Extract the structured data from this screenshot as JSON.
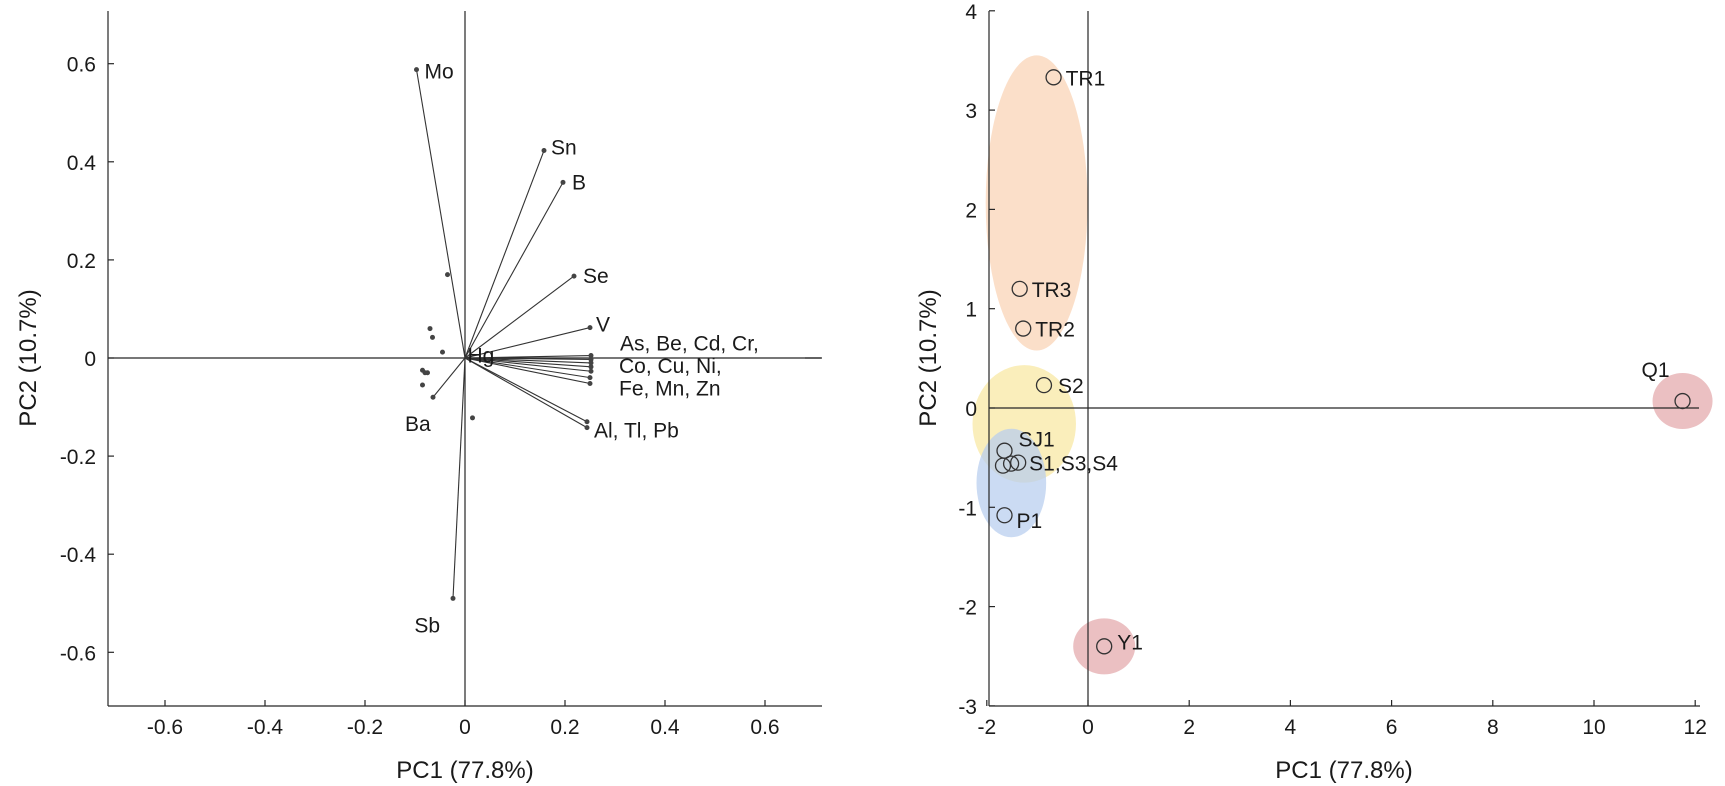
{
  "chart_data": [
    {
      "type": "scatter",
      "subtype": "loading-biplot",
      "title": "",
      "xlabel": "PC1 (77.8%)",
      "ylabel": "PC2 (10.7%)",
      "xlim": [
        -0.65,
        0.65
      ],
      "ylim": [
        -0.64,
        0.64
      ],
      "xticks": [
        -0.6,
        -0.4,
        -0.2,
        0,
        0.2,
        0.4,
        0.6
      ],
      "xtick_labels": [
        "-0.6",
        "-0.4",
        "-0.2",
        "0",
        "0.2",
        "0.4",
        "0.6"
      ],
      "yticks": [
        -0.6,
        -0.4,
        -0.2,
        0,
        0.2,
        0.4,
        0.6
      ],
      "ytick_labels": [
        "-0.6",
        "-0.4",
        "-0.2",
        "0",
        "0.2",
        "0.4",
        "0.6"
      ],
      "grid": false,
      "vectors": [
        {
          "label": "Mo",
          "x": -0.097,
          "y": 0.588
        },
        {
          "label": "Sn",
          "x": 0.158,
          "y": 0.423
        },
        {
          "label": "B",
          "x": 0.196,
          "y": 0.358
        },
        {
          "label": "Se",
          "x": 0.218,
          "y": 0.167
        },
        {
          "label": "V",
          "x": 0.25,
          "y": 0.062
        },
        {
          "label": "",
          "x": 0.252,
          "y": 0.005
        },
        {
          "label": "",
          "x": 0.252,
          "y": -0.003
        },
        {
          "label": "",
          "x": 0.252,
          "y": -0.01
        },
        {
          "label": "",
          "x": 0.252,
          "y": -0.018
        },
        {
          "label": "",
          "x": 0.252,
          "y": -0.027
        },
        {
          "label": "",
          "x": 0.25,
          "y": -0.04
        },
        {
          "label": "",
          "x": 0.25,
          "y": -0.052
        },
        {
          "label": "",
          "x": 0.244,
          "y": -0.13
        },
        {
          "label": "",
          "x": 0.244,
          "y": -0.142
        },
        {
          "label": "Ba",
          "x": -0.064,
          "y": -0.08
        },
        {
          "label": "Sb",
          "x": -0.024,
          "y": -0.49
        }
      ],
      "points": [
        {
          "label": "",
          "x": -0.035,
          "y": 0.17
        },
        {
          "label": "",
          "x": -0.07,
          "y": 0.06
        },
        {
          "label": "",
          "x": -0.065,
          "y": 0.042
        },
        {
          "label": "",
          "x": -0.045,
          "y": 0.012
        },
        {
          "label": "",
          "x": -0.085,
          "y": -0.025
        },
        {
          "label": "",
          "x": -0.08,
          "y": -0.03
        },
        {
          "label": "",
          "x": -0.075,
          "y": -0.03
        },
        {
          "label": "",
          "x": -0.085,
          "y": -0.055
        },
        {
          "label": "",
          "x": 0.015,
          "y": -0.122
        }
      ],
      "annotations": [
        {
          "text": "Hg",
          "x": 0.005,
          "y": 0.005
        },
        {
          "text": "As, Be, Cd, Cr,",
          "x": 0.31,
          "y": 0.03
        },
        {
          "text": "Co, Cu, Ni,",
          "x": 0.308,
          "y": -0.016
        },
        {
          "text": "Fe, Mn, Zn",
          "x": 0.308,
          "y": -0.062
        },
        {
          "text": "Al, Tl, Pb",
          "x": 0.258,
          "y": -0.148
        }
      ]
    },
    {
      "type": "scatter",
      "subtype": "score-plot",
      "title": "",
      "xlabel": "PC1 (77.8%)",
      "ylabel": "PC2 (10.7%)",
      "xlim": [
        -2,
        12
      ],
      "ylim": [
        -3,
        4
      ],
      "xticks": [
        -2,
        0,
        2,
        4,
        6,
        8,
        10,
        12
      ],
      "xtick_labels": [
        "-2",
        "0",
        "2",
        "4",
        "6",
        "8",
        "10",
        "12"
      ],
      "yticks": [
        -3,
        -2,
        -1,
        0,
        1,
        2,
        3,
        4
      ],
      "yticks_labels_note": "",
      "ytick_labels": [
        "-3",
        "-2",
        "-1",
        "0",
        "1",
        "2",
        "3",
        "4"
      ],
      "grid": false,
      "points": [
        {
          "label": "TR1",
          "x": -0.68,
          "y": 3.33
        },
        {
          "label": "TR3",
          "x": -1.35,
          "y": 1.2
        },
        {
          "label": "TR2",
          "x": -1.28,
          "y": 0.8
        },
        {
          "label": "S2",
          "x": -0.87,
          "y": 0.23
        },
        {
          "label": "Q1",
          "x": 11.75,
          "y": 0.07
        },
        {
          "label": "SJ1",
          "x": -1.65,
          "y": -0.43
        },
        {
          "label": "",
          "x": -1.68,
          "y": -0.58
        },
        {
          "label": "",
          "x": -1.52,
          "y": -0.56
        },
        {
          "label": "S1,S3,S4",
          "x": -1.38,
          "y": -0.55
        },
        {
          "label": "P1",
          "x": -1.65,
          "y": -1.08
        },
        {
          "label": "Y1",
          "x": 0.32,
          "y": -2.4
        }
      ],
      "groups": [
        {
          "members": [
            "TR1",
            "TR3",
            "TR2"
          ],
          "color": "#f9d2b4"
        },
        {
          "members": [
            "S2",
            "SJ1",
            "S1,S3,S4"
          ],
          "color": "#f8e7a1"
        },
        {
          "members": [
            "SJ1",
            "S1,S3,S4",
            "P1"
          ],
          "color": "#b7cdef"
        },
        {
          "members": [
            "Q1"
          ],
          "color": "#e3a8ab"
        },
        {
          "members": [
            "Y1"
          ],
          "color": "#e3a8ab"
        }
      ]
    }
  ]
}
